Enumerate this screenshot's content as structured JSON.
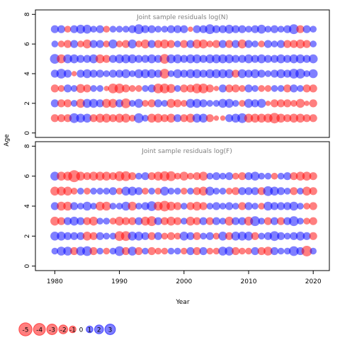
{
  "chart_data": [
    {
      "type": "scatter",
      "subtype": "bubble",
      "title": "Joint sample residuals log(N)",
      "xlabel": "",
      "ylabel": "Age",
      "xlim": [
        1977,
        2022.5
      ],
      "ylim": [
        -0.3,
        8.3
      ],
      "yticks": [
        0,
        2,
        4,
        6,
        8
      ],
      "x": [
        1980,
        1981,
        1982,
        1983,
        1984,
        1985,
        1986,
        1987,
        1988,
        1989,
        1990,
        1991,
        1992,
        1993,
        1994,
        1995,
        1996,
        1997,
        1998,
        1999,
        2000,
        2001,
        2002,
        2003,
        2004,
        2005,
        2006,
        2007,
        2008,
        2009,
        2010,
        2011,
        2012,
        2013,
        2014,
        2015,
        2016,
        2017,
        2018,
        2019,
        2020
      ],
      "ages": [
        1,
        2,
        3,
        4,
        5,
        6,
        7
      ],
      "residuals": [
        [
          -1.5,
          -1.5,
          -1.5,
          2.5,
          2,
          2,
          -1.5,
          -2,
          -2,
          -1.5,
          -2,
          -2,
          -1,
          2.5,
          1,
          -2,
          -2,
          -1.5,
          -2,
          1.5,
          -1.5,
          -2,
          2,
          2,
          -1.5,
          -0.5,
          -0.5,
          1.5,
          2,
          2.5,
          -2,
          -2,
          -2,
          -2,
          -3,
          -2,
          -1.5,
          -2,
          -2,
          -1.5,
          -1.5
        ],
        [
          1.5,
          -1.5,
          -1.5,
          1,
          -2,
          2,
          2,
          1.5,
          -2,
          -2,
          1.5,
          -2.5,
          1,
          2,
          -1,
          -1.5,
          1.5,
          1,
          -2,
          -1.5,
          -1,
          2,
          2,
          1.5,
          1,
          1,
          2,
          2,
          1,
          -1,
          2,
          1.5,
          2,
          -0.5,
          -1.5,
          -1.5,
          -1.5,
          -1,
          -2,
          -0.5,
          -1.5
        ],
        [
          -1.5,
          -1,
          1.5,
          1,
          -2,
          -1.5,
          1,
          1,
          -0.5,
          -2.5,
          -2.5,
          -1.5,
          -1,
          -1,
          1,
          1.5,
          -2.5,
          -2.5,
          -2,
          1,
          -1.5,
          -1.5,
          -2.5,
          -2.5,
          -1.5,
          -0.5,
          1.5,
          -1.5,
          -1.5,
          -1,
          1.5,
          1,
          -1,
          -1,
          1,
          1,
          -1.5,
          1.5,
          1,
          -1.5,
          -1.5
        ],
        [
          1.5,
          2.5,
          1.5,
          -0.5,
          1.5,
          2,
          1.5,
          1.5,
          1,
          1.5,
          1.5,
          2,
          1,
          2,
          2,
          2,
          1.5,
          -2.5,
          1,
          2,
          1.5,
          2,
          2,
          1.5,
          2,
          2,
          2,
          2,
          -1.5,
          2,
          1.5,
          2,
          1.5,
          1,
          1.5,
          2,
          1.5,
          2.5,
          2.5,
          1,
          2
        ],
        [
          2.5,
          -2,
          2,
          2,
          1.5,
          1.5,
          2,
          -2,
          -1.5,
          1.5,
          2,
          2,
          2,
          1.5,
          1.5,
          2,
          1.5,
          -2.5,
          2,
          2,
          1.5,
          2,
          2,
          1.5,
          2,
          2,
          2,
          2,
          1.5,
          1.5,
          2,
          1.5,
          2,
          1.5,
          1.5,
          2,
          1.5,
          2,
          2,
          1.5,
          2
        ],
        [
          1,
          -1,
          -1.5,
          1.5,
          -1,
          -2,
          1.5,
          1.5,
          -1,
          2,
          -1,
          -1.5,
          2,
          -1,
          -2,
          1.5,
          -1.5,
          -2,
          -1.5,
          1,
          -1.5,
          1.5,
          -2,
          -2,
          -1,
          -1.5,
          1.5,
          -1.5,
          1.5,
          -2,
          1.5,
          1,
          -1,
          1.5,
          1,
          1.5,
          -1.5,
          -1.5,
          -2,
          -1.5,
          1
        ],
        [
          1.5,
          1.5,
          -1,
          1.5,
          2,
          2,
          1,
          1.5,
          -1,
          1,
          1,
          1,
          1.5,
          2.5,
          1.5,
          1.5,
          1,
          1,
          1.5,
          1.5,
          1.5,
          -0.5,
          1.5,
          1.5,
          2.5,
          1.5,
          1.5,
          2,
          1.5,
          1.5,
          1,
          1.5,
          2,
          1,
          1.5,
          1,
          1.5,
          2.5,
          -1.5,
          1.5,
          1
        ]
      ]
    },
    {
      "type": "scatter",
      "subtype": "bubble",
      "title": "Joint sample residuals log(F)",
      "xlabel": "Year",
      "ylabel": "Age",
      "xlim": [
        1977,
        2022.5
      ],
      "ylim": [
        -0.3,
        8.3
      ],
      "xticks": [
        1980,
        1990,
        2000,
        2010,
        2020
      ],
      "yticks": [
        0,
        2,
        4,
        6,
        8
      ],
      "x": [
        1980,
        1981,
        1982,
        1983,
        1984,
        1985,
        1986,
        1987,
        1988,
        1989,
        1990,
        1991,
        1992,
        1993,
        1994,
        1995,
        1996,
        1997,
        1998,
        1999,
        2000,
        2001,
        2002,
        2003,
        2004,
        2005,
        2006,
        2007,
        2008,
        2009,
        2010,
        2011,
        2012,
        2013,
        2014,
        2015,
        2016,
        2017,
        2018,
        2019,
        2020
      ],
      "ages": [
        1,
        2,
        3,
        4,
        5,
        6
      ],
      "residuals": [
        [
          1,
          2,
          2,
          -1.5,
          2,
          2.5,
          -1.5,
          1,
          -1,
          1,
          2.5,
          -1.5,
          2,
          -1.5,
          1,
          -1.5,
          -1,
          -1,
          1,
          1,
          -1,
          1.5,
          -1.5,
          1.5,
          -1,
          -1,
          2,
          2,
          -1.5,
          -1,
          -1,
          1.5,
          -1.5,
          -2,
          1.5,
          1,
          1,
          2.5,
          1.5,
          -3,
          1
        ],
        [
          2,
          2,
          1.5,
          1.5,
          1.5,
          -2,
          -1.5,
          1.5,
          1,
          1,
          -2.5,
          -2.5,
          2,
          2,
          1.5,
          -1.5,
          1.5,
          -1,
          -1.5,
          -1,
          2,
          1.5,
          -1.5,
          1,
          1.5,
          -1,
          2,
          -1.5,
          2,
          2,
          2,
          -1.5,
          1,
          1.5,
          2.5,
          1.5,
          1,
          1.5,
          2,
          1.5,
          -1.5
        ],
        [
          -2,
          -1.5,
          1.5,
          2,
          1.5,
          -1.5,
          -2,
          1,
          1,
          -1,
          -2,
          -1.5,
          -1.5,
          1.5,
          -2,
          -2.5,
          1.5,
          -1.5,
          -2,
          -1.5,
          1,
          -2,
          -1.5,
          1.5,
          -1.5,
          1.5,
          1,
          -2,
          1.5,
          1.5,
          -2,
          2.5,
          1,
          -1.5,
          1.5,
          -1.5,
          1.5,
          2.5,
          1,
          -1,
          -1.5
        ],
        [
          1.5,
          -2,
          -2,
          1.5,
          1,
          2,
          1,
          -2,
          -2,
          1,
          1,
          2,
          -2,
          1,
          1.5,
          2.5,
          -2,
          -3,
          -2,
          -1.5,
          1,
          -1.5,
          -2,
          -1.5,
          1,
          1.5,
          1,
          1.5,
          1,
          -1.5,
          1.5,
          1,
          -1,
          2,
          1.5,
          1.5,
          1.5,
          2,
          1,
          -1,
          -1.5
        ],
        [
          -2,
          -2,
          -2,
          -1,
          1,
          -1,
          1,
          1,
          1,
          1.5,
          -1,
          2,
          2,
          1.5,
          -1,
          1,
          -1,
          2,
          1,
          1,
          -1,
          1,
          -1.5,
          -2,
          2,
          1,
          1,
          -1,
          -1.5,
          1.5,
          1.5,
          1.5,
          -1.5,
          2.5,
          2,
          1.5,
          1,
          -1.5,
          1,
          -2,
          -1.5
        ],
        [
          2,
          -2,
          -2,
          -4,
          -2,
          -1.5,
          -2,
          -2,
          -2,
          -1.5,
          -2.5,
          -2.5,
          -1.5,
          1,
          1.5,
          -1.5,
          -2,
          -2.5,
          -2.5,
          -1,
          -2,
          -1,
          -1.5,
          -2,
          1,
          1.5,
          1,
          1.5,
          -1,
          -1.5,
          1.5,
          2,
          1,
          1,
          -1,
          1,
          1.5,
          -1.5,
          -2,
          -2,
          -1.5
        ]
      ]
    }
  ],
  "legend": {
    "values": [
      -5,
      -4,
      -3,
      -2,
      -1,
      0,
      1,
      2,
      3
    ],
    "labels": [
      "-5",
      "-4",
      "-3",
      "-2",
      "-1",
      "0",
      "1",
      "2",
      "3"
    ]
  },
  "colors": {
    "negative": "#ff0000",
    "positive": "#0000ff",
    "opacity": 0.5,
    "axis": "#000000",
    "title": "#808080"
  }
}
